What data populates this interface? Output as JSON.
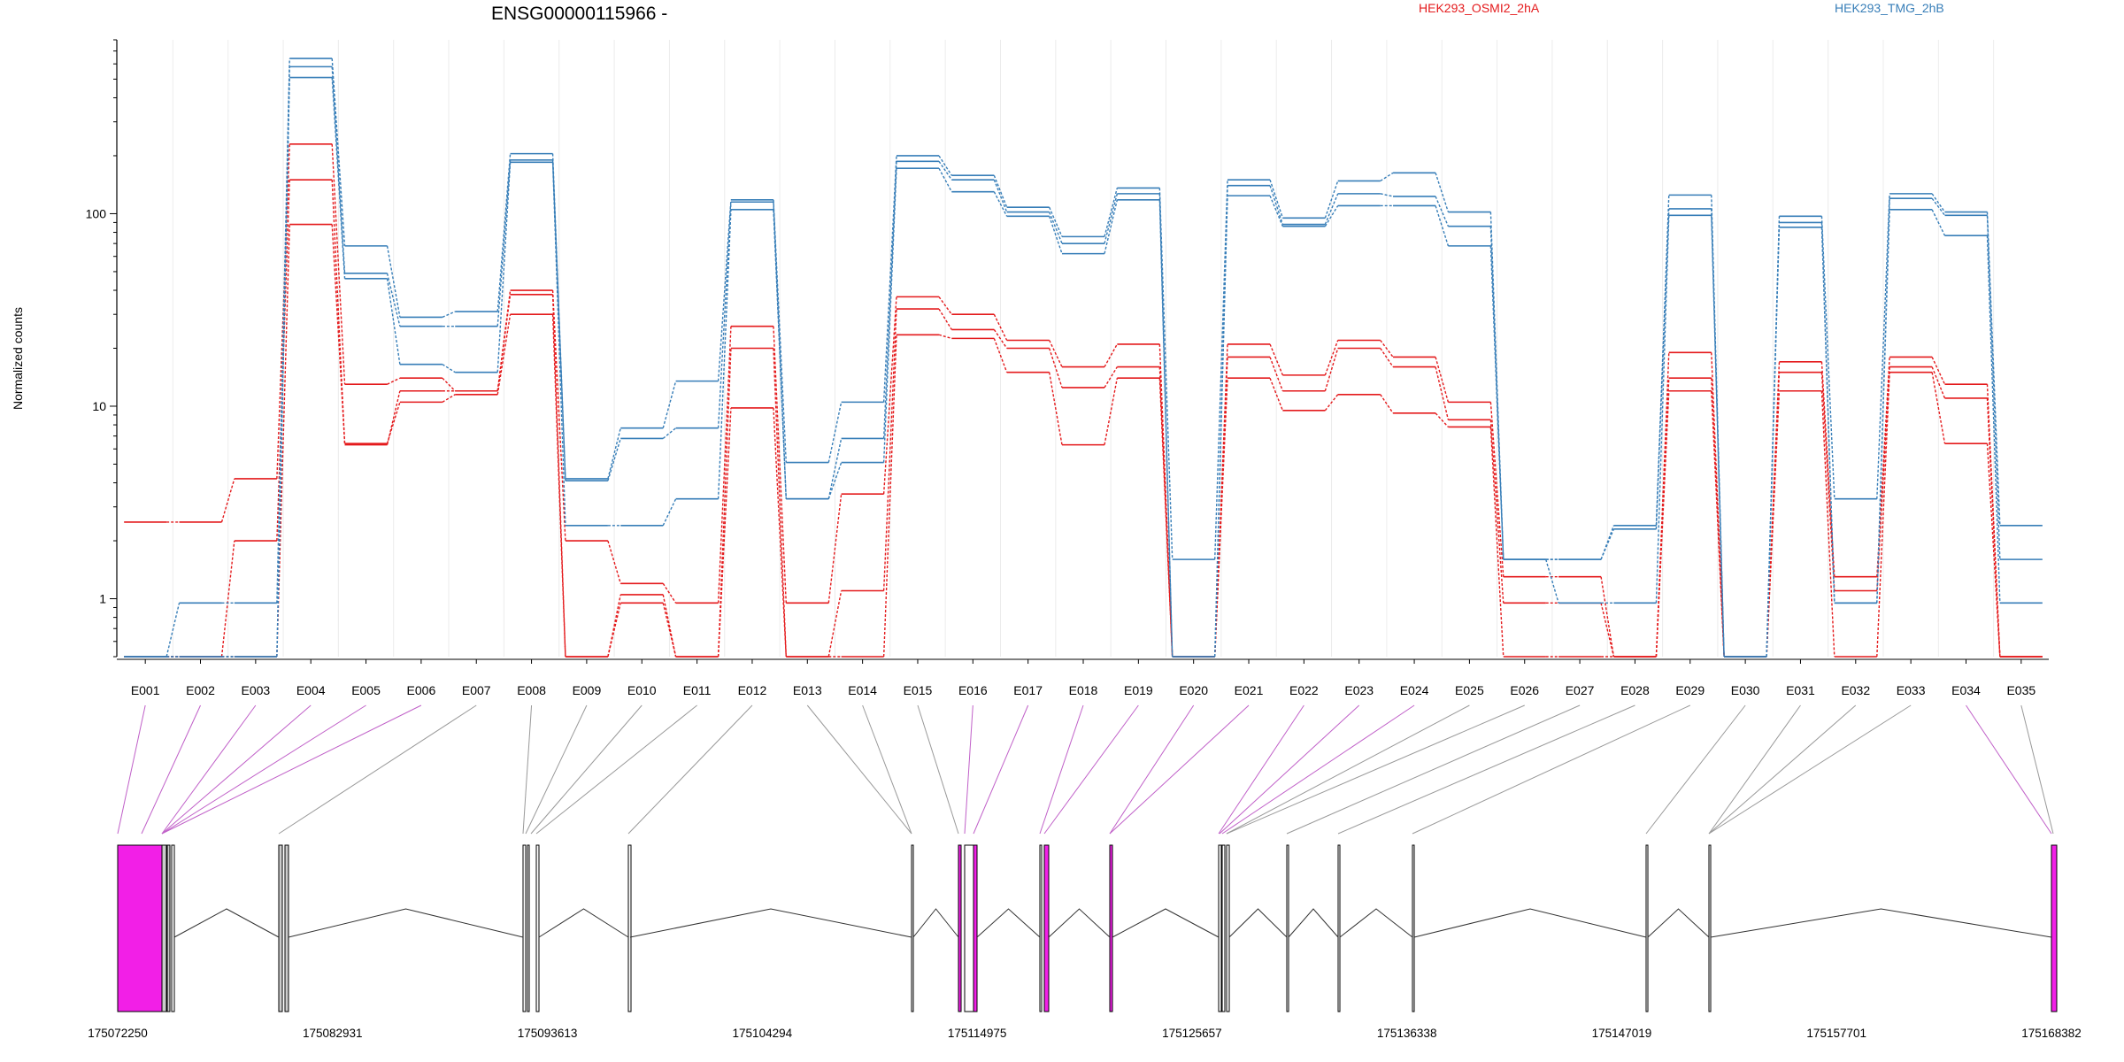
{
  "chart_data": {
    "type": "line",
    "title": "ENSG00000115966 -",
    "ylabel": "Normalized counts",
    "yscale": "log",
    "ylim": [
      0.5,
      800
    ],
    "yticks": [
      1,
      10,
      100
    ],
    "ytick_labels": [
      "1",
      "10",
      "100"
    ],
    "categories": [
      "E001",
      "E002",
      "E003",
      "E004",
      "E005",
      "E006",
      "E007",
      "E008",
      "E009",
      "E010",
      "E011",
      "E012",
      "E013",
      "E014",
      "E015",
      "E016",
      "E017",
      "E018",
      "E019",
      "E020",
      "E021",
      "E022",
      "E023",
      "E024",
      "E025",
      "E026",
      "E027",
      "E028",
      "E029",
      "E030",
      "E031",
      "E032",
      "E033",
      "E034",
      "E035"
    ],
    "legend": [
      {
        "name": "HEK293_OSMI2_2hA",
        "color": "#e41a1c"
      },
      {
        "name": "HEK293_TMG_2hB",
        "color": "#377eb8"
      }
    ],
    "series": [
      {
        "group": "HEK293_OSMI2_2hA",
        "color": "#e41a1c",
        "values": [
          2.5,
          2.5,
          4.2,
          230,
          13,
          14,
          12,
          40,
          2,
          1.2,
          0.95,
          26,
          0.95,
          3.5,
          37,
          30,
          22,
          16,
          21,
          0.5,
          21,
          14.5,
          22,
          18,
          10.5,
          1.3,
          1.3,
          0.5,
          19,
          0.5,
          17,
          1.3,
          18,
          13,
          0.5
        ]
      },
      {
        "group": "HEK293_OSMI2_2hA",
        "color": "#e41a1c",
        "values": [
          0.5,
          0.5,
          2,
          150,
          6.3,
          12,
          12,
          38,
          0.5,
          1.05,
          0.5,
          20,
          0.5,
          1.1,
          32,
          25,
          20,
          12.5,
          16,
          0.5,
          18,
          12,
          20,
          16,
          8.5,
          0.95,
          0.95,
          0.5,
          14,
          0.5,
          15,
          1.1,
          16,
          11,
          0.5
        ]
      },
      {
        "group": "HEK293_OSMI2_2hA",
        "color": "#e41a1c",
        "values": [
          0.5,
          0.5,
          0.5,
          88,
          6.4,
          10.5,
          11.5,
          30,
          0.5,
          0.95,
          0.5,
          9.8,
          0.5,
          0.5,
          23.5,
          22.5,
          15,
          6.3,
          14,
          0.5,
          14,
          9.5,
          11.5,
          9.2,
          7.8,
          0.5,
          0.5,
          0.5,
          12,
          0.5,
          12,
          0.5,
          15,
          6.4,
          0.5
        ]
      },
      {
        "group": "HEK293_TMG_2hB",
        "color": "#377eb8",
        "values": [
          0.5,
          0.95,
          0.95,
          640,
          68,
          29,
          31,
          205,
          4.2,
          7.7,
          13.5,
          118,
          5.1,
          10.5,
          200,
          158,
          108,
          76,
          136,
          1.6,
          150,
          95,
          148,
          163,
          102,
          1.6,
          1.6,
          2.4,
          125,
          0.5,
          97,
          3.3,
          127,
          102,
          2.4
        ]
      },
      {
        "group": "HEK293_TMG_2hB",
        "color": "#377eb8",
        "values": [
          0.5,
          0.5,
          0.5,
          580,
          49,
          26,
          26,
          190,
          4.1,
          6.8,
          7.7,
          115,
          3.3,
          6.8,
          187,
          150,
          102,
          70,
          127,
          0.5,
          140,
          88,
          127,
          123,
          86,
          1.6,
          1.6,
          2.3,
          106,
          0.5,
          90,
          0.95,
          120,
          98,
          1.6
        ]
      },
      {
        "group": "HEK293_TMG_2hB",
        "color": "#377eb8",
        "values": [
          0.5,
          0.5,
          0.5,
          510,
          46,
          16.5,
          15,
          185,
          2.4,
          2.4,
          3.3,
          105,
          3.3,
          5.1,
          172,
          130,
          97,
          62,
          118,
          0.5,
          124,
          86,
          110,
          110,
          68,
          1.6,
          0.95,
          0.95,
          98,
          0.5,
          85,
          0.95,
          105,
          77,
          0.95
        ]
      }
    ],
    "gene_axis_labels": [
      "175072250",
      "175082931",
      "175093613",
      "175104294",
      "175114975",
      "175125657",
      "175136338",
      "175147019",
      "175157701",
      "175168382"
    ],
    "gene_range": [
      175072250,
      175168382
    ],
    "exon_highlight_colors": {
      "differential": "#f21fe7",
      "normal": "#cccccc"
    }
  }
}
